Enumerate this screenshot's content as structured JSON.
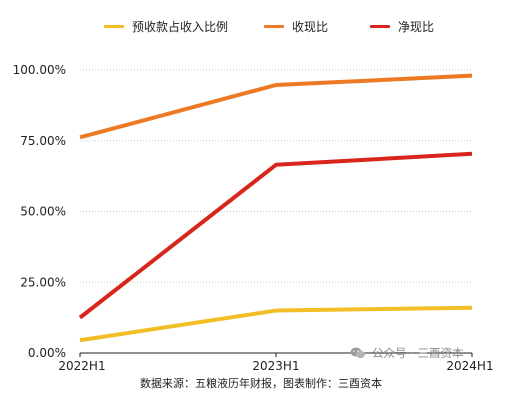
{
  "chart_data": {
    "type": "line",
    "categories": [
      "2022H1",
      "2023H1",
      "2024H1"
    ],
    "series": [
      {
        "name": "预收款占收入比例",
        "color": "#f2bd27",
        "values": [
          4.5,
          15.0,
          16.0
        ]
      },
      {
        "name": "收现比",
        "color": "#ec7a24",
        "values": [
          76.2,
          94.7,
          98.0
        ]
      },
      {
        "name": "净现比",
        "color": "#d9261c",
        "values": [
          12.5,
          66.5,
          70.4
        ]
      }
    ],
    "yticks": [
      "0.00%",
      "25.00%",
      "50.00%",
      "75.00%",
      "100.00%"
    ],
    "ylim": [
      0,
      100
    ],
    "grid": "horizontal-dotted",
    "legend_position": "top"
  },
  "watermark": {
    "text": "公众号 · 三酉资本",
    "icon": "wechat-icon"
  },
  "source_note": "数据来源：五粮液历年财报，图表制作：三酉资本"
}
